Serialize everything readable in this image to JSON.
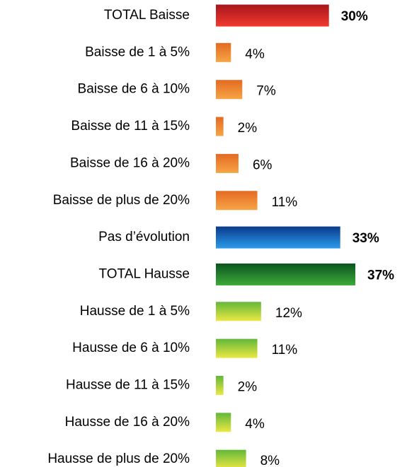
{
  "chart_data": {
    "type": "barh",
    "categories": [
      "TOTAL Baisse",
      "Baisse de 1 à 5%",
      "Baisse de 6 à 10%",
      "Baisse de 11 à 15%",
      "Baisse de 16 à 20%",
      "Baisse de plus de 20%",
      "Pas d’évolution",
      "TOTAL Hausse",
      "Hausse de 1 à 5%",
      "Hausse de 6 à 10%",
      "Hausse de 11 à 15%",
      "Hausse de 16 à 20%",
      "Hausse de plus de 20%"
    ],
    "values": [
      30,
      4,
      7,
      2,
      6,
      11,
      33,
      37,
      12,
      11,
      2,
      4,
      8
    ],
    "value_labels": [
      "30%",
      "4%",
      "7%",
      "2%",
      "6%",
      "11%",
      "33%",
      "37%",
      "12%",
      "11%",
      "2%",
      "4%",
      "8%"
    ],
    "colors": [
      [
        "#a8141a",
        "#f23a30"
      ],
      [
        "#e46a22",
        "#f6a545"
      ],
      [
        "#e46a22",
        "#f6a545"
      ],
      [
        "#e46a22",
        "#f6a545"
      ],
      [
        "#e46a22",
        "#f6a545"
      ],
      [
        "#e46a22",
        "#f6a545"
      ],
      [
        "#0a3a8c",
        "#2b9ceb"
      ],
      [
        "#0a5520",
        "#3eaa38"
      ],
      [
        "#62b83a",
        "#ece843"
      ],
      [
        "#62b83a",
        "#ece843"
      ],
      [
        "#62b83a",
        "#ece843"
      ],
      [
        "#62b83a",
        "#ece843"
      ],
      [
        "#62b83a",
        "#ece843"
      ]
    ],
    "emphasis": [
      true,
      false,
      false,
      false,
      false,
      false,
      true,
      true,
      false,
      false,
      false,
      false,
      false
    ]
  }
}
